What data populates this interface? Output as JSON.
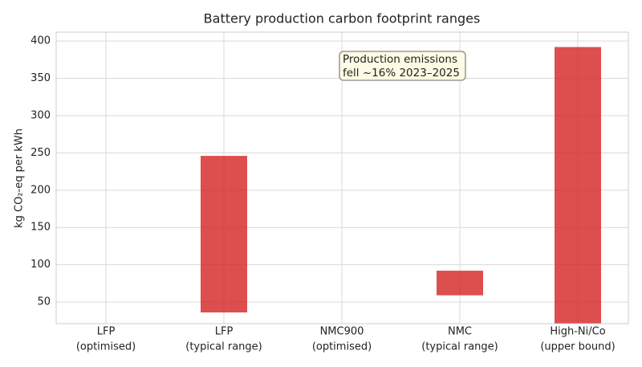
{
  "chart_data": {
    "type": "range-bar",
    "title": "Battery production carbon footprint ranges",
    "y_label": "kg CO₂-eq per kWh",
    "categories": [
      [
        "LFP",
        "(optimised)"
      ],
      [
        "LFP",
        "(typical range)"
      ],
      [
        "NMC900",
        "(optimised)"
      ],
      [
        "NMC",
        "(typical range)"
      ],
      [
        "High-Ni/Co",
        "(upper bound)"
      ]
    ],
    "low": [
      null,
      36,
      null,
      59,
      21
    ],
    "high": [
      null,
      246,
      null,
      92,
      392
    ],
    "color": "#d62728",
    "ylim": [
      21,
      412
    ],
    "yticks": [
      50,
      100,
      150,
      200,
      250,
      300,
      350,
      400
    ],
    "grid": true,
    "annotation": [
      "Production emissions",
      "fell ~16% 2023–2025"
    ]
  }
}
